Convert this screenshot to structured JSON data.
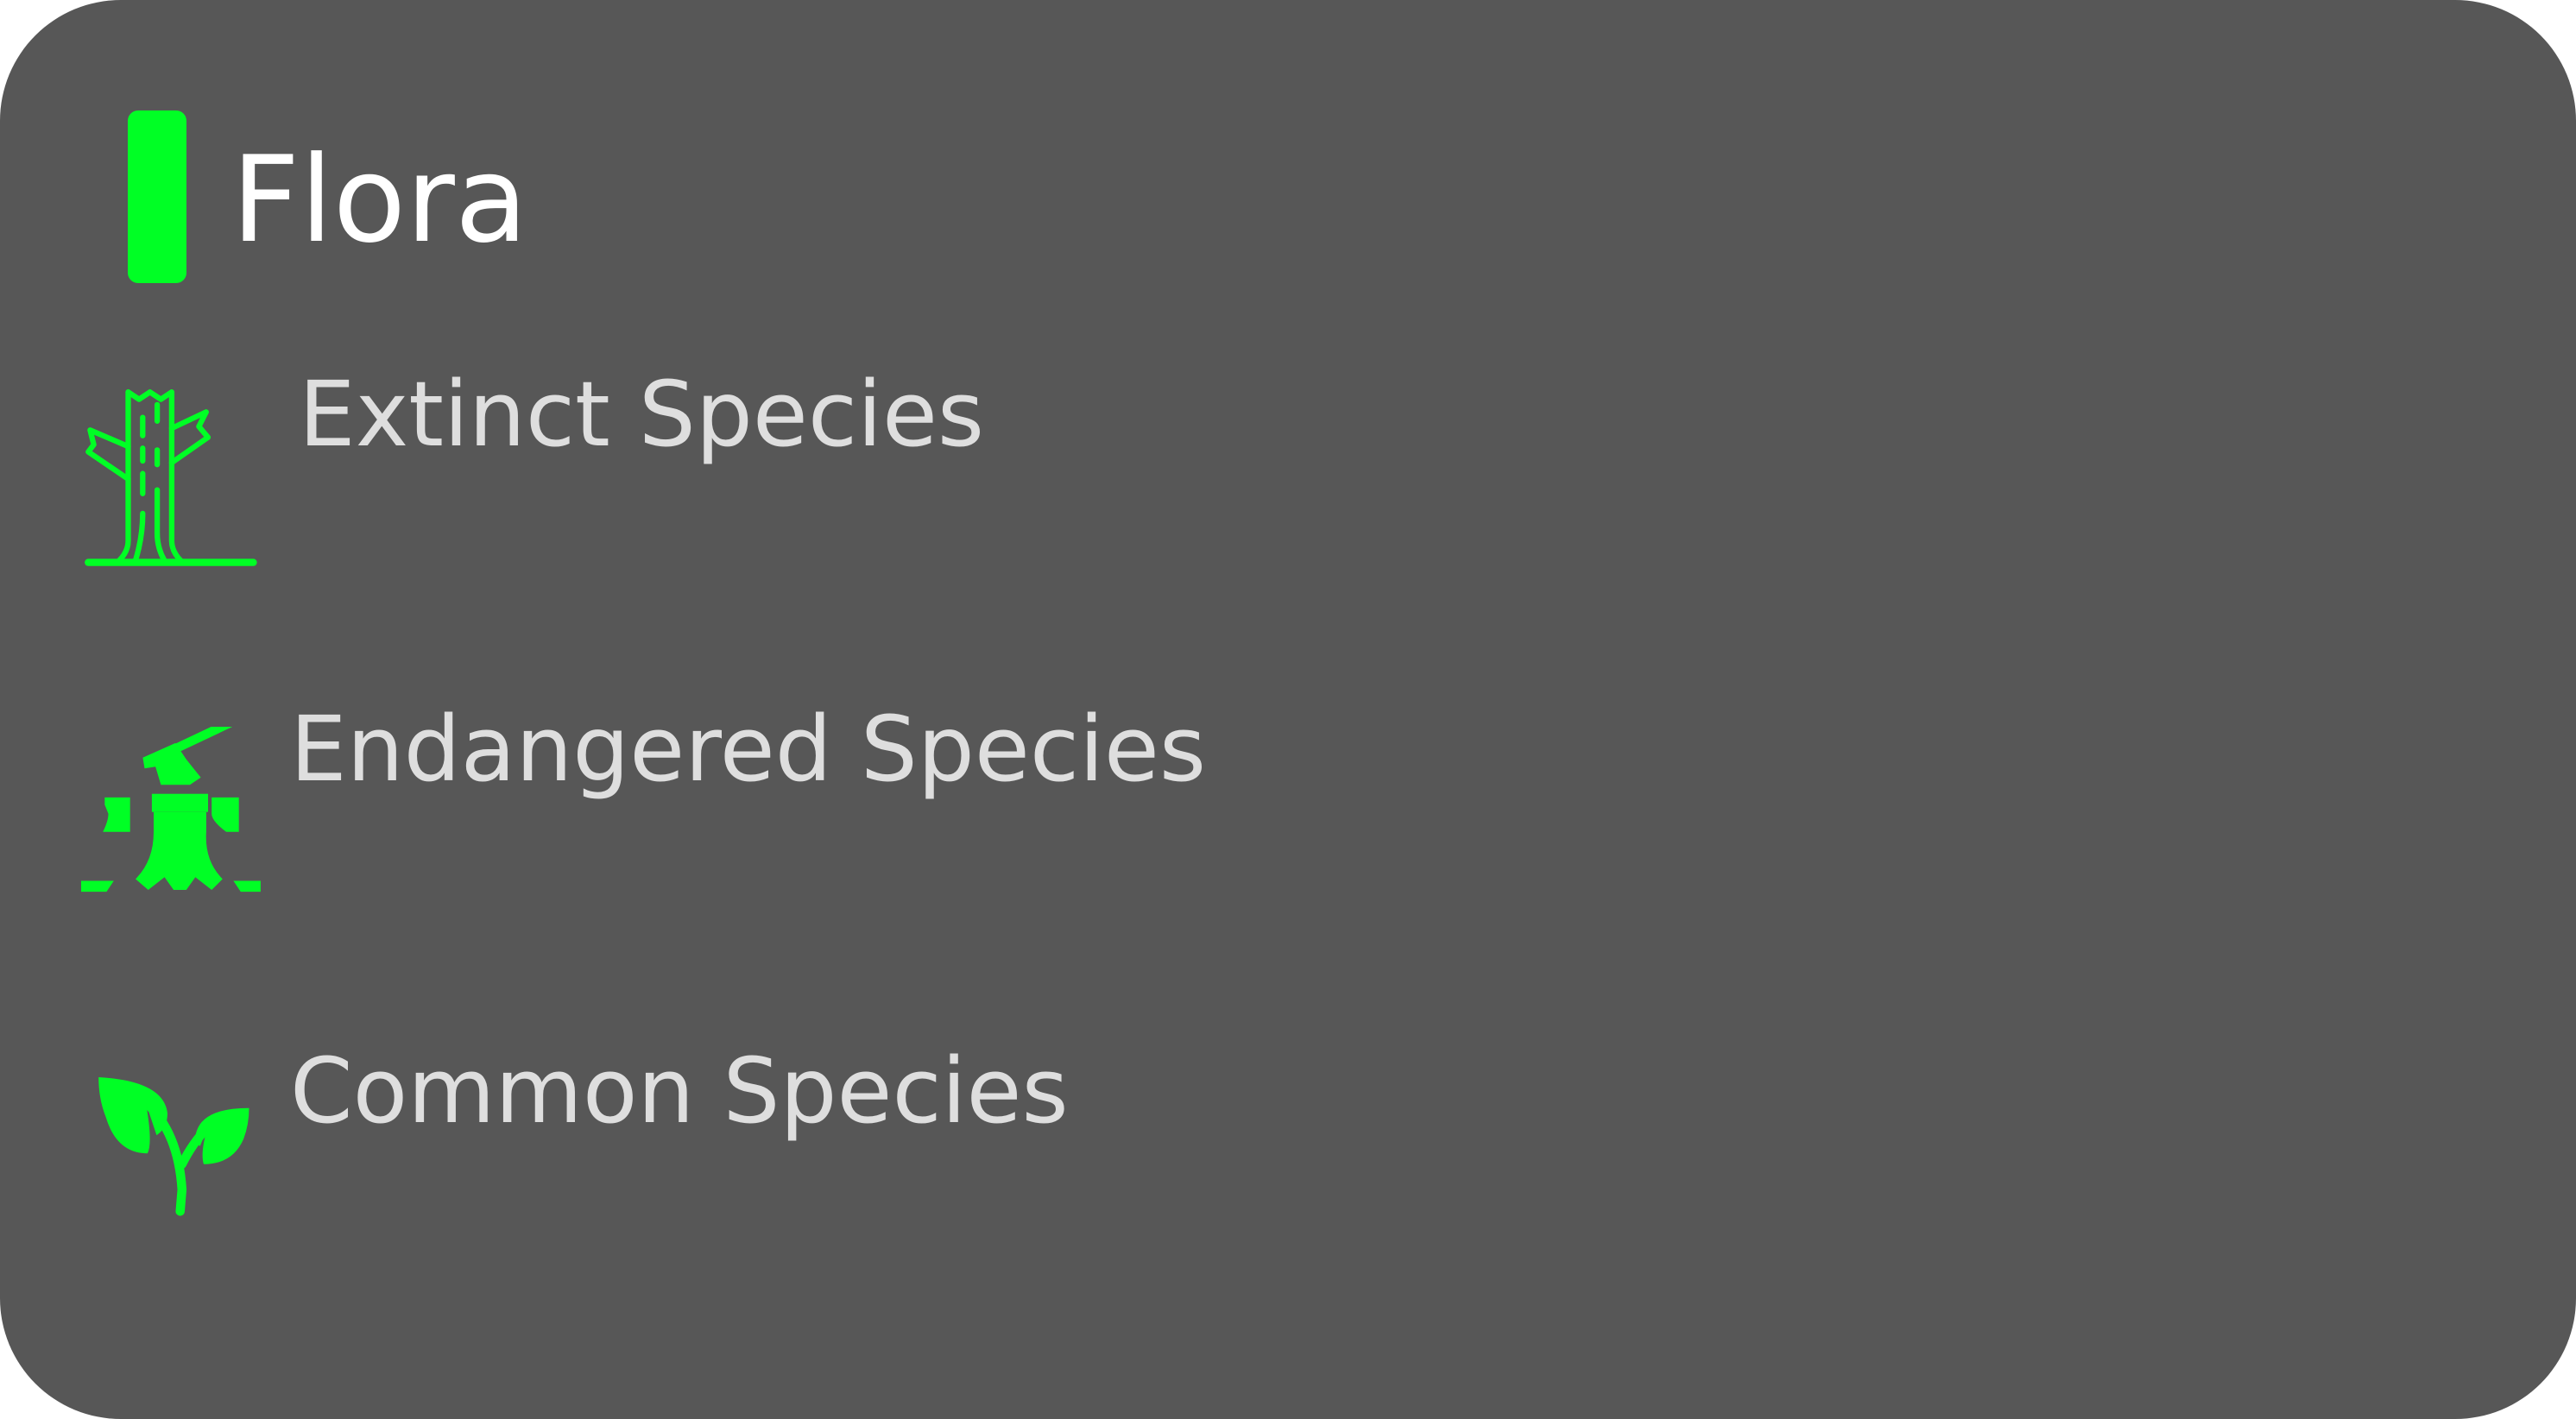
{
  "panel": {
    "title": "Flora",
    "background": "#575757",
    "accent_color": "#00ff25"
  },
  "items": [
    {
      "label": "Extinct Species",
      "icon": "dead-tree-icon"
    },
    {
      "label": "Endangered Species",
      "icon": "tree-stump-axe-icon"
    },
    {
      "label": "Common Species",
      "icon": "sprout-icon"
    }
  ]
}
